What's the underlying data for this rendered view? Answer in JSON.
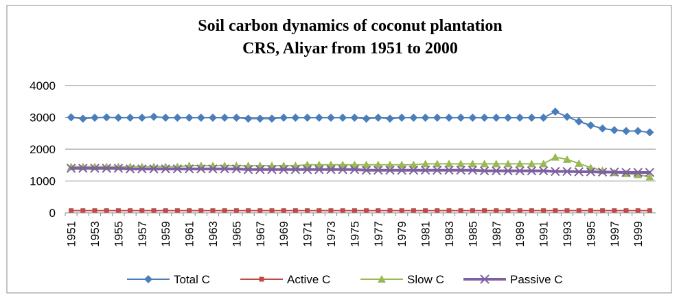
{
  "chart_data": {
    "type": "line",
    "title": [
      "Soil carbon dynamics  of coconut plantation",
      "CRS, Aliyar from 1951 to 2000"
    ],
    "categories": [
      "1951",
      null,
      "1953",
      null,
      "1955",
      null,
      "1957",
      null,
      "1959",
      null,
      "1961",
      null,
      "1963",
      null,
      "1965",
      null,
      "1967",
      null,
      "1969",
      null,
      "1971",
      null,
      "1973",
      null,
      "1975",
      null,
      "1977",
      null,
      "1979",
      null,
      "1981",
      null,
      "1983",
      null,
      "1985",
      null,
      "1987",
      null,
      "1989",
      null,
      "1991",
      null,
      "1993",
      null,
      "1995",
      null,
      "1997",
      null,
      "1999",
      null
    ],
    "ylim": [
      0,
      4000
    ],
    "yticks": [
      0,
      1000,
      2000,
      3000,
      4000
    ],
    "grid": true,
    "legend": "bottom",
    "series": [
      {
        "name": "Total C",
        "color": "#4a7ebb",
        "marker": "diamond",
        "values": [
          3000,
          2960,
          2990,
          3000,
          2990,
          2990,
          2990,
          3020,
          2990,
          2990,
          2990,
          2990,
          2990,
          2990,
          2990,
          2960,
          2960,
          2960,
          2990,
          2990,
          2990,
          2990,
          2990,
          2990,
          2990,
          2960,
          2990,
          2960,
          2990,
          2990,
          2990,
          2990,
          2990,
          2990,
          2990,
          2990,
          2990,
          2990,
          2990,
          2990,
          2990,
          3180,
          3020,
          2870,
          2750,
          2650,
          2600,
          2570,
          2570,
          2530
        ]
      },
      {
        "name": "Active C",
        "color": "#be4b48",
        "marker": "square",
        "values": [
          70,
          70,
          70,
          70,
          70,
          70,
          70,
          70,
          70,
          70,
          70,
          70,
          70,
          70,
          70,
          70,
          70,
          70,
          70,
          70,
          70,
          70,
          70,
          70,
          70,
          70,
          70,
          70,
          70,
          70,
          70,
          70,
          70,
          70,
          70,
          70,
          70,
          70,
          70,
          70,
          70,
          70,
          70,
          70,
          70,
          70,
          70,
          70,
          70,
          70
        ]
      },
      {
        "name": "Slow C",
        "color": "#98b954",
        "marker": "triangle",
        "values": [
          1450,
          1450,
          1450,
          1450,
          1450,
          1450,
          1450,
          1450,
          1450,
          1450,
          1480,
          1480,
          1480,
          1480,
          1480,
          1480,
          1480,
          1480,
          1480,
          1480,
          1510,
          1510,
          1510,
          1510,
          1510,
          1510,
          1510,
          1510,
          1510,
          1510,
          1540,
          1540,
          1540,
          1540,
          1540,
          1540,
          1540,
          1540,
          1540,
          1540,
          1540,
          1750,
          1680,
          1550,
          1420,
          1330,
          1260,
          1230,
          1200,
          1130
        ]
      },
      {
        "name": "Passive C",
        "color": "#7d60a0",
        "marker": "x",
        "values": [
          1400,
          1400,
          1400,
          1400,
          1400,
          1380,
          1380,
          1380,
          1380,
          1380,
          1380,
          1380,
          1380,
          1380,
          1380,
          1360,
          1360,
          1360,
          1360,
          1360,
          1360,
          1360,
          1360,
          1360,
          1360,
          1340,
          1340,
          1340,
          1340,
          1340,
          1340,
          1340,
          1340,
          1340,
          1340,
          1320,
          1320,
          1320,
          1320,
          1320,
          1320,
          1300,
          1300,
          1290,
          1290,
          1280,
          1280,
          1270,
          1270,
          1270
        ]
      }
    ]
  }
}
